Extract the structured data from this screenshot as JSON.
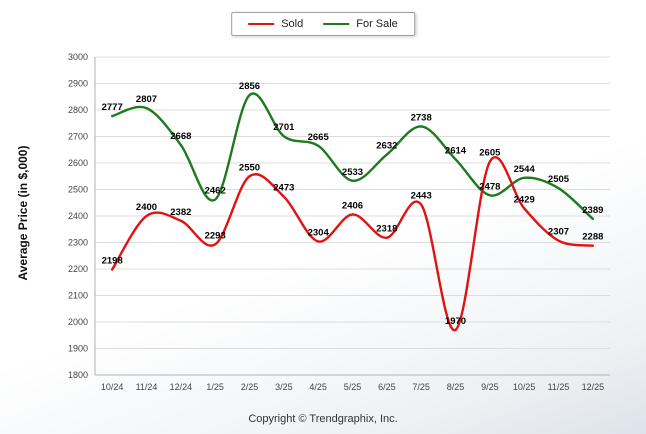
{
  "copyright": "Copyright © Trendgraphix, Inc.",
  "colors": {
    "sold": "#e01212",
    "for_sale": "#1e7a1e",
    "grid": "#dcdcdc",
    "axis": "#b3b3b3",
    "tick": "#444444",
    "data_label": "#000000"
  },
  "chart_data": {
    "type": "line",
    "title": "",
    "xlabel": "",
    "ylabel": "Average Price (in $,000)",
    "ylim": [
      1800,
      3000
    ],
    "ytick_step": 100,
    "grid": true,
    "legend_position": "top-center",
    "categories": [
      "10/24",
      "11/24",
      "12/24",
      "1/25",
      "2/25",
      "3/25",
      "4/25",
      "5/25",
      "6/25",
      "7/25",
      "8/25",
      "9/25",
      "10/25",
      "11/25",
      "12/25"
    ],
    "series": [
      {
        "name": "Sold",
        "color_key": "sold",
        "values": [
          2198,
          2400,
          2382,
          2293,
          2550,
          2473,
          2304,
          2406,
          2318,
          2443,
          1970,
          2605,
          2429,
          2307,
          2288
        ]
      },
      {
        "name": "For Sale",
        "color_key": "for_sale",
        "values": [
          2777,
          2807,
          2668,
          2462,
          2856,
          2701,
          2665,
          2533,
          2632,
          2738,
          2614,
          2478,
          2544,
          2505,
          2389
        ]
      }
    ]
  }
}
